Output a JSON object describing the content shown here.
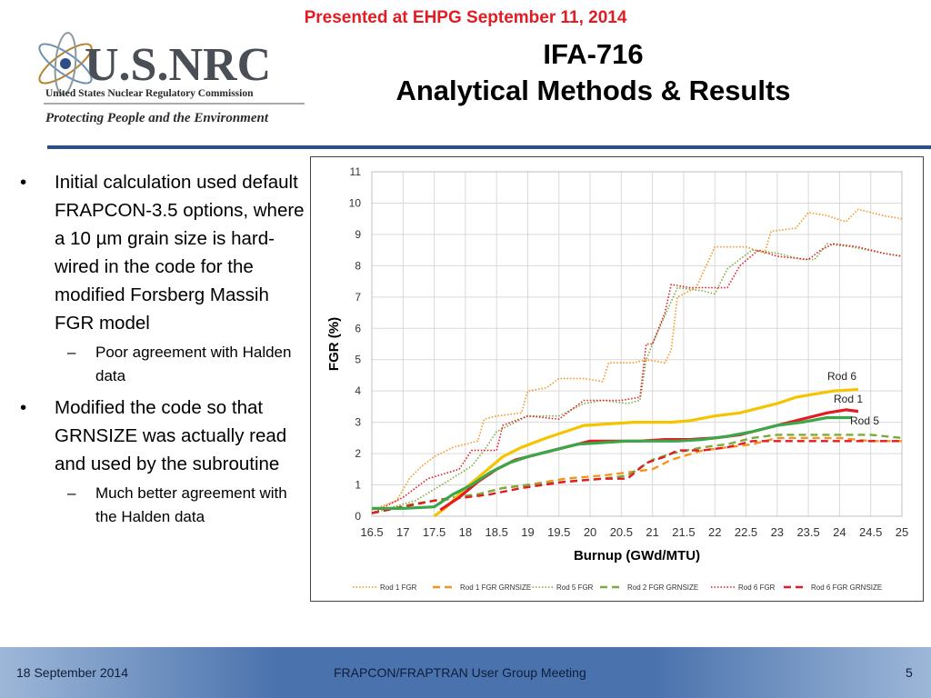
{
  "banner": "Presented at EHPG September 11, 2014",
  "logo": {
    "name": "U.S.NRC",
    "org": "United States Nuclear Regulatory Commission",
    "tagline": "Protecting People and the Environment"
  },
  "title": {
    "line1": "IFA-716",
    "line2": "Analytical Methods & Results"
  },
  "bullets": [
    {
      "text": "Initial calculation used default FRAPCON-3.5 options, where a 10 µm grain size is hard-wired in the code for the modified Forsberg Massih FGR model",
      "sub": "Poor agreement with Halden data"
    },
    {
      "text": "Modified the code so that GRNSIZE was actually read and used by the subroutine",
      "sub": "Much better agreement with the Halden data"
    }
  ],
  "footer": {
    "date": "18 September 2014",
    "event": "FRAPCON/FRAPTRAN User Group Meeting",
    "page": "5"
  },
  "colors": {
    "banner": "#e31b23",
    "rule": "#2c4f86",
    "rod1": "#f7941d",
    "rod5": "#7aab3e",
    "rod6": "#e31b23",
    "rod6_meas": "#f5c400",
    "rod1_meas": "#e31b23",
    "rod5_meas": "#3aa84a"
  },
  "chart_data": {
    "type": "line",
    "xlabel": "Burnup (GWd/MTU)",
    "ylabel": "FGR (%)",
    "xlim": [
      16.5,
      25
    ],
    "ylim": [
      0,
      11
    ],
    "xticks": [
      "16.5",
      "17",
      "17.5",
      "18",
      "18.5",
      "19",
      "19.5",
      "20",
      "20.5",
      "21",
      "21.5",
      "22",
      "22.5",
      "23",
      "23.5",
      "24",
      "24.5",
      "25"
    ],
    "yticks": [
      "0",
      "1",
      "2",
      "3",
      "4",
      "5",
      "6",
      "7",
      "8",
      "9",
      "10",
      "11"
    ],
    "grid": true,
    "legend_position": "bottom",
    "annotations": [
      "Rod 6",
      "Rod 1",
      "Rod 5"
    ],
    "series": [
      {
        "name": "Rod 1 FGR",
        "style": "dotted",
        "color": "#f7941d",
        "x": [
          16.5,
          16.9,
          17.1,
          17.3,
          17.5,
          17.8,
          18.2,
          18.3,
          18.5,
          18.9,
          19.0,
          19.3,
          19.5,
          19.9,
          20.2,
          20.3,
          20.7,
          20.9,
          21.2,
          21.3,
          21.4,
          21.7,
          22.0,
          22.5,
          22.8,
          22.9,
          23.3,
          23.5,
          23.8,
          24.1,
          24.3,
          24.7,
          25.0
        ],
        "y": [
          0.2,
          0.5,
          1.2,
          1.6,
          1.9,
          2.2,
          2.4,
          3.1,
          3.2,
          3.3,
          4.0,
          4.1,
          4.4,
          4.4,
          4.3,
          4.9,
          4.9,
          5.0,
          4.9,
          5.3,
          7.0,
          7.3,
          8.6,
          8.6,
          8.4,
          9.1,
          9.2,
          9.7,
          9.6,
          9.4,
          9.8,
          9.6,
          9.5
        ]
      },
      {
        "name": "Rod 1 FGR GRNSIZE",
        "style": "dashed",
        "color": "#f7941d",
        "x": [
          16.5,
          17.2,
          17.8,
          18.2,
          18.6,
          19.0,
          19.6,
          20.2,
          20.6,
          21.0,
          21.3,
          21.8,
          22.2,
          22.6,
          23.0,
          23.5,
          24.0,
          24.5,
          25.0
        ],
        "y": [
          0.1,
          0.4,
          0.6,
          0.7,
          0.9,
          1.0,
          1.2,
          1.3,
          1.4,
          1.5,
          1.8,
          2.1,
          2.2,
          2.3,
          2.5,
          2.5,
          2.5,
          2.4,
          2.4
        ]
      },
      {
        "name": "Rod 5 FGR",
        "style": "dotted",
        "color": "#7aab3e",
        "x": [
          16.5,
          17.2,
          17.7,
          18.1,
          18.3,
          18.5,
          18.9,
          19.0,
          19.5,
          19.9,
          20.2,
          20.6,
          20.8,
          20.9,
          21.0,
          21.4,
          21.8,
          22.0,
          22.2,
          22.6,
          23.0,
          23.4,
          23.6,
          23.8,
          24.2,
          24.7,
          25.0
        ],
        "y": [
          0.1,
          0.5,
          1.1,
          1.6,
          2.1,
          2.7,
          3.1,
          3.2,
          3.2,
          3.6,
          3.7,
          3.6,
          3.7,
          5.0,
          5.5,
          7.3,
          7.2,
          7.1,
          7.9,
          8.5,
          8.4,
          8.2,
          8.2,
          8.7,
          8.6,
          8.4,
          8.3
        ]
      },
      {
        "name": "Rod 2 FGR GRNSIZE",
        "style": "dashed",
        "color": "#7aab3e",
        "x": [
          16.5,
          17.2,
          17.8,
          18.2,
          18.6,
          19.0,
          19.6,
          20.2,
          20.6,
          21.0,
          21.3,
          21.8,
          22.2,
          22.6,
          23.0,
          23.5,
          24.0,
          24.5,
          25.0
        ],
        "y": [
          0.1,
          0.4,
          0.6,
          0.7,
          0.9,
          1.0,
          1.1,
          1.2,
          1.3,
          1.8,
          2.0,
          2.2,
          2.3,
          2.5,
          2.6,
          2.6,
          2.6,
          2.6,
          2.5
        ]
      },
      {
        "name": "Rod 6 FGR",
        "style": "dotted",
        "color": "#e31b23",
        "x": [
          16.5,
          17.0,
          17.4,
          17.9,
          18.1,
          18.5,
          18.6,
          19.0,
          19.5,
          19.9,
          20.3,
          20.5,
          20.8,
          20.9,
          21.0,
          21.2,
          21.3,
          21.6,
          22.0,
          22.2,
          22.4,
          22.7,
          23.0,
          23.5,
          23.7,
          23.9,
          24.3,
          24.7,
          25.0
        ],
        "y": [
          0.1,
          0.6,
          1.2,
          1.5,
          2.1,
          2.1,
          2.9,
          3.2,
          3.1,
          3.7,
          3.7,
          3.7,
          3.8,
          5.5,
          5.5,
          6.5,
          7.4,
          7.3,
          7.3,
          7.3,
          8.0,
          8.5,
          8.3,
          8.2,
          8.5,
          8.7,
          8.6,
          8.4,
          8.3
        ]
      },
      {
        "name": "Rod 6 FGR GRNSIZE",
        "style": "dashed",
        "color": "#e31b23",
        "x": [
          16.5,
          17.0,
          17.5,
          18.0,
          18.4,
          18.9,
          19.6,
          20.2,
          20.6,
          20.9,
          21.2,
          21.4,
          21.8,
          22.2,
          22.6,
          23.0,
          23.5,
          24.0,
          24.5,
          25.0
        ],
        "y": [
          0.1,
          0.3,
          0.5,
          0.6,
          0.7,
          0.9,
          1.1,
          1.2,
          1.2,
          1.7,
          1.9,
          2.1,
          2.1,
          2.2,
          2.4,
          2.4,
          2.4,
          2.4,
          2.4,
          2.4
        ]
      },
      {
        "name": "Rod 6",
        "style": "solid",
        "color": "#f5c400",
        "x": [
          17.5,
          17.7,
          18.0,
          18.3,
          18.6,
          18.9,
          19.3,
          19.6,
          19.9,
          20.3,
          20.7,
          21.0,
          21.3,
          21.6,
          22.0,
          22.4,
          22.8,
          23.0,
          23.3,
          23.6,
          23.9,
          24.3
        ],
        "y": [
          0.0,
          0.3,
          0.9,
          1.4,
          1.9,
          2.2,
          2.5,
          2.7,
          2.9,
          2.95,
          3.0,
          3.0,
          3.0,
          3.05,
          3.2,
          3.3,
          3.5,
          3.6,
          3.8,
          3.9,
          4.0,
          4.05
        ]
      },
      {
        "name": "Rod 1",
        "style": "solid",
        "color": "#e31b23",
        "x": [
          17.6,
          17.9,
          18.2,
          18.5,
          18.8,
          19.2,
          19.6,
          20.0,
          20.4,
          20.8,
          21.2,
          21.6,
          22.0,
          22.4,
          22.8,
          23.0,
          23.4,
          23.8,
          24.1,
          24.3
        ],
        "y": [
          0.2,
          0.6,
          1.1,
          1.5,
          1.8,
          2.0,
          2.2,
          2.4,
          2.4,
          2.4,
          2.45,
          2.45,
          2.5,
          2.6,
          2.8,
          2.9,
          3.1,
          3.3,
          3.4,
          3.35
        ]
      },
      {
        "name": "Rod 5",
        "style": "solid",
        "color": "#3aa84a",
        "x": [
          16.5,
          17.0,
          17.5,
          17.8,
          18.1,
          18.4,
          18.7,
          19.0,
          19.4,
          19.8,
          20.2,
          20.6,
          21.0,
          21.4,
          21.8,
          22.2,
          22.6,
          23.0,
          23.4,
          23.8,
          24.2
        ],
        "y": [
          0.25,
          0.25,
          0.3,
          0.7,
          1.0,
          1.4,
          1.7,
          1.9,
          2.1,
          2.3,
          2.35,
          2.4,
          2.4,
          2.4,
          2.45,
          2.55,
          2.7,
          2.9,
          3.0,
          3.15,
          3.15
        ]
      }
    ]
  }
}
